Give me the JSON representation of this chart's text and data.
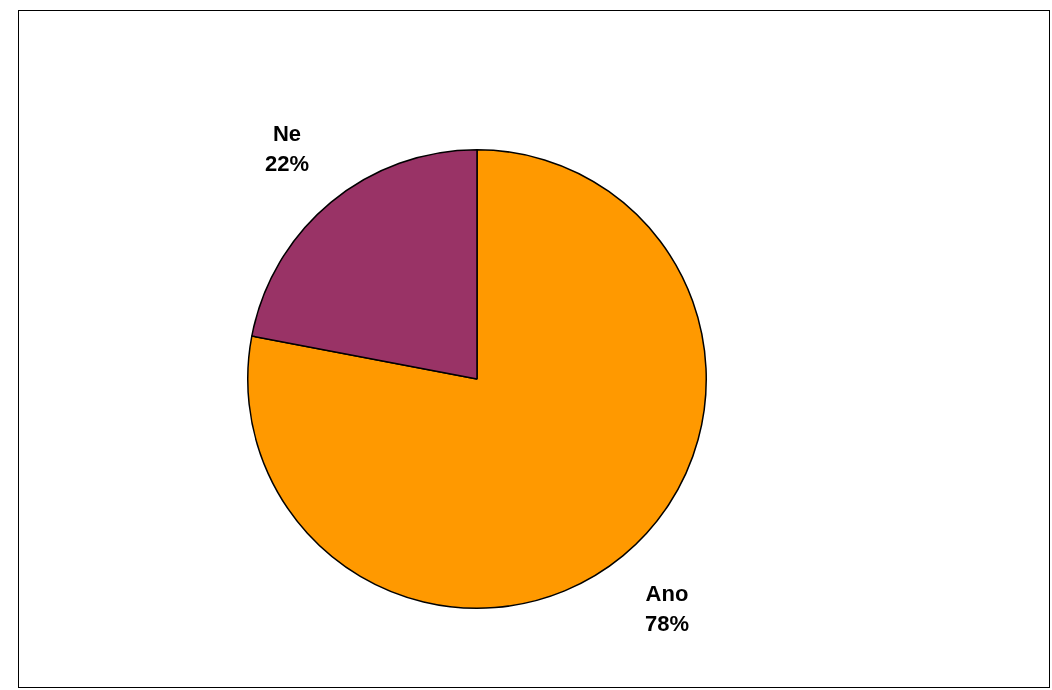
{
  "chart_data": {
    "type": "pie",
    "categories": [
      "Ano",
      "Ne"
    ],
    "values": [
      78,
      22
    ],
    "colors": [
      "#ff9900",
      "#993366"
    ],
    "value_labels": [
      "78%",
      "22%"
    ],
    "legend": false
  }
}
